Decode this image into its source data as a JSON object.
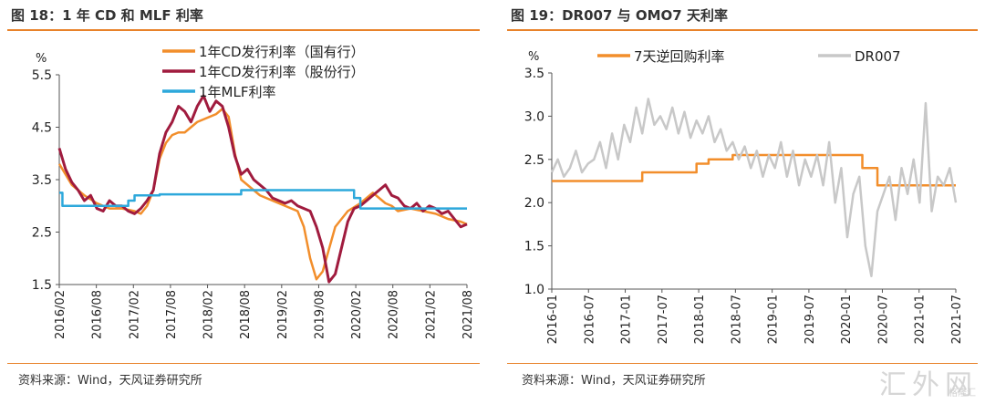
{
  "left": {
    "title": "图 18：1 年 CD 和 MLF 利率",
    "source": "资料来源：Wind，天风证券研究所",
    "chart_data": {
      "type": "line",
      "unit": "%",
      "ylim": [
        1.5,
        5.5
      ],
      "yticks": [
        "5.5",
        "4.5",
        "3.5",
        "2.5",
        "1.5"
      ],
      "xticks": [
        "2016/02",
        "2016/08",
        "2017/02",
        "2017/08",
        "2018/02",
        "2018/08",
        "2019/02",
        "2019/08",
        "2020/02",
        "2020/08",
        "2021/02",
        "2021/08"
      ],
      "legend": [
        "1年CD发行利率（国有行）",
        "1年CD发行利率（股份行）",
        "1年MLF利率"
      ],
      "series": [
        {
          "name": "1年CD发行利率（国有行）",
          "color": "#F28E2B",
          "x": [
            0,
            2,
            4,
            6,
            8,
            10,
            12,
            13,
            14,
            15,
            16,
            17,
            18,
            19,
            20,
            22,
            24,
            25,
            26,
            27,
            28,
            29,
            30,
            31,
            32,
            34,
            36,
            37,
            38,
            39,
            40,
            41,
            42,
            44,
            46,
            48,
            49,
            50,
            51,
            52,
            53,
            54,
            56,
            58,
            60,
            62,
            64,
            65
          ],
          "y": [
            3.8,
            3.4,
            3.2,
            3.05,
            2.95,
            2.95,
            2.9,
            2.85,
            3.0,
            3.3,
            3.9,
            4.2,
            4.35,
            4.4,
            4.4,
            4.6,
            4.7,
            4.75,
            4.85,
            4.7,
            4.0,
            3.5,
            3.4,
            3.3,
            3.2,
            3.1,
            3.0,
            2.95,
            2.9,
            2.6,
            2.0,
            1.6,
            1.75,
            2.6,
            2.9,
            3.05,
            3.15,
            3.25,
            3.15,
            3.05,
            3.0,
            2.9,
            2.95,
            2.9,
            2.85,
            2.75,
            2.7,
            2.65
          ]
        },
        {
          "name": "1年CD发行利率（股份行）",
          "color": "#A01B3E",
          "x": [
            0,
            1,
            2,
            3,
            4,
            5,
            6,
            7,
            8,
            9,
            10,
            11,
            12,
            13,
            14,
            15,
            16,
            17,
            18,
            19,
            20,
            21,
            22,
            23,
            24,
            25,
            26,
            27,
            28,
            29,
            30,
            31,
            32,
            33,
            34,
            35,
            36,
            37,
            38,
            39,
            40,
            41,
            42,
            43,
            44,
            45,
            46,
            47,
            48,
            49,
            50,
            51,
            52,
            53,
            54,
            55,
            56,
            57,
            58,
            59,
            60,
            61,
            62,
            63,
            64,
            65
          ],
          "y": [
            4.1,
            3.7,
            3.45,
            3.3,
            3.1,
            3.2,
            2.95,
            2.9,
            3.1,
            3.0,
            3.0,
            2.9,
            2.85,
            2.95,
            3.1,
            3.3,
            4.0,
            4.4,
            4.6,
            4.9,
            4.8,
            4.6,
            4.9,
            5.1,
            4.8,
            5.0,
            4.9,
            4.5,
            3.95,
            3.6,
            3.7,
            3.5,
            3.4,
            3.3,
            3.15,
            3.1,
            3.05,
            3.1,
            3.0,
            2.95,
            2.9,
            2.6,
            2.2,
            1.55,
            1.7,
            2.2,
            2.7,
            2.95,
            3.0,
            3.1,
            3.2,
            3.3,
            3.4,
            3.2,
            3.15,
            3.0,
            2.95,
            3.05,
            2.9,
            3.0,
            2.95,
            2.85,
            2.9,
            2.75,
            2.6,
            2.65
          ]
        },
        {
          "name": "1年MLF利率",
          "color": "#2DA8DB",
          "step": true,
          "x": [
            0,
            0.5,
            11,
            12,
            16,
            29,
            46,
            47,
            48,
            49,
            65
          ],
          "y": [
            3.25,
            3.0,
            3.1,
            3.2,
            3.22,
            3.3,
            3.3,
            3.15,
            2.95,
            2.95,
            2.95
          ]
        }
      ]
    }
  },
  "right": {
    "title": "图 19：DR007 与 OMO7 天利率",
    "source": "资料来源：Wind，天风证券研究所",
    "chart_data": {
      "type": "line",
      "unit": "%",
      "ylim": [
        1.0,
        3.5
      ],
      "yticks": [
        "3.5",
        "3.0",
        "2.5",
        "2.0",
        "1.5",
        "1.0"
      ],
      "xticks": [
        "2016-01",
        "2016-07",
        "2017-01",
        "2017-07",
        "2018-01",
        "2018-07",
        "2019-01",
        "2019-07",
        "2020-01",
        "2020-07",
        "2021-01",
        "2021-07"
      ],
      "legend": [
        "7天逆回购利率",
        "DR007"
      ],
      "series": [
        {
          "name": "7天逆回购利率",
          "color": "#F28E2B",
          "step": true,
          "x": [
            0,
            13,
            15,
            24,
            26,
            30,
            51,
            51.5,
            54,
            56,
            67
          ],
          "y": [
            2.25,
            2.25,
            2.35,
            2.45,
            2.5,
            2.55,
            2.55,
            2.4,
            2.2,
            2.2,
            2.2
          ]
        },
        {
          "name": "DR007",
          "color": "#C8C8C8",
          "x": [
            0,
            1,
            2,
            3,
            4,
            5,
            6,
            7,
            8,
            9,
            10,
            11,
            12,
            13,
            14,
            15,
            16,
            17,
            18,
            19,
            20,
            21,
            22,
            23,
            24,
            25,
            26,
            27,
            28,
            29,
            30,
            31,
            32,
            33,
            34,
            35,
            36,
            37,
            38,
            39,
            40,
            41,
            42,
            43,
            44,
            45,
            46,
            47,
            48,
            49,
            50,
            51,
            52,
            53,
            54,
            55,
            56,
            57,
            58,
            59,
            60,
            61,
            62,
            63,
            64,
            65,
            66,
            67
          ],
          "y": [
            2.35,
            2.5,
            2.3,
            2.4,
            2.6,
            2.35,
            2.45,
            2.5,
            2.7,
            2.4,
            2.8,
            2.5,
            2.9,
            2.7,
            3.1,
            2.8,
            3.2,
            2.9,
            3.0,
            2.85,
            3.1,
            2.8,
            3.05,
            2.75,
            2.95,
            2.8,
            3.0,
            2.7,
            2.85,
            2.6,
            2.7,
            2.5,
            2.65,
            2.4,
            2.6,
            2.3,
            2.55,
            2.4,
            2.7,
            2.3,
            2.6,
            2.2,
            2.5,
            2.3,
            2.55,
            2.2,
            2.7,
            2.0,
            2.4,
            1.6,
            2.1,
            2.3,
            1.5,
            1.15,
            1.9,
            2.1,
            2.3,
            1.8,
            2.4,
            2.1,
            2.5,
            2.0,
            3.15,
            1.9,
            2.3,
            2.2,
            2.4,
            2.0
          ]
        }
      ]
    }
  },
  "watermark": "汇外网",
  "watermark_sub": "格隆汇"
}
